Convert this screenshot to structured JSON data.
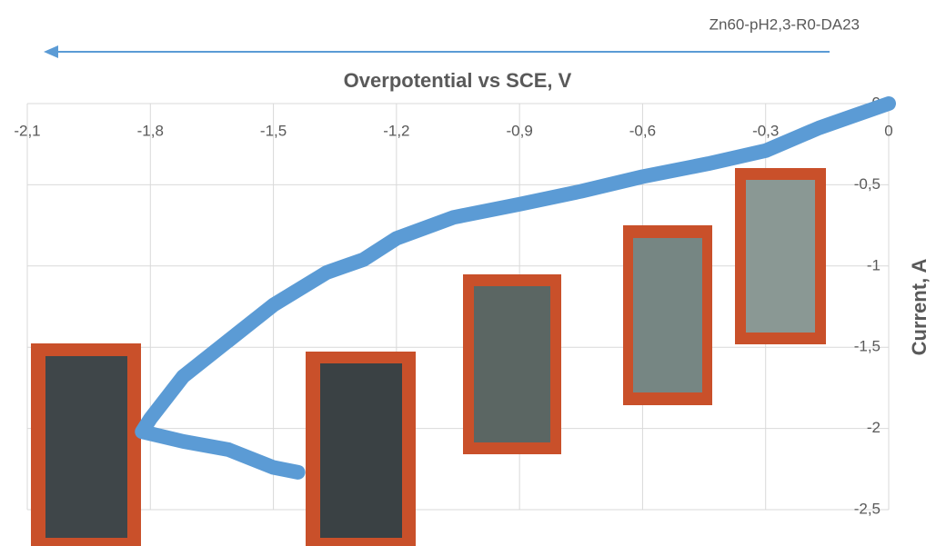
{
  "chart_data": {
    "type": "line",
    "annotation": "Zn60-pH2,3-R0-DA23",
    "x_label": "Overpotential vs SCE, V",
    "y_label": "Current, A",
    "color": "#5b9bd5",
    "grid": true,
    "x": [
      0,
      -0.08,
      -0.17,
      -0.3,
      -0.44,
      -0.6,
      -0.75,
      -0.9,
      -1.06,
      -1.2,
      -1.28,
      -1.37,
      -1.5,
      -1.61,
      -1.72,
      -1.8,
      -1.82,
      -1.72,
      -1.61,
      -1.5,
      -1.44
    ],
    "values": [
      0,
      -0.07,
      -0.15,
      -0.29,
      -0.37,
      -0.45,
      -0.54,
      -0.62,
      -0.7,
      -0.83,
      -0.96,
      -1.04,
      -1.24,
      -1.46,
      -1.68,
      -1.94,
      -2.02,
      -2.08,
      -2.13,
      -2.24,
      -2.27
    ],
    "xlim": [
      -2.1,
      0
    ],
    "ylim": [
      -2.5,
      0
    ],
    "xticks": [
      {
        "value": -2.1,
        "label": "-2,1"
      },
      {
        "value": -1.8,
        "label": "-1,8"
      },
      {
        "value": -1.5,
        "label": "-1,5"
      },
      {
        "value": -1.2,
        "label": "-1,2"
      },
      {
        "value": -0.9,
        "label": "-0,9"
      },
      {
        "value": -0.6,
        "label": "-0,6"
      },
      {
        "value": -0.3,
        "label": "-0,3"
      },
      0
    ],
    "yticks": [
      0,
      {
        "value": -0.5,
        "label": "-0,5"
      },
      -1,
      {
        "value": -1.5,
        "label": "-1,5"
      },
      -2,
      {
        "value": -2.5,
        "label": "-2,5"
      }
    ]
  }
}
